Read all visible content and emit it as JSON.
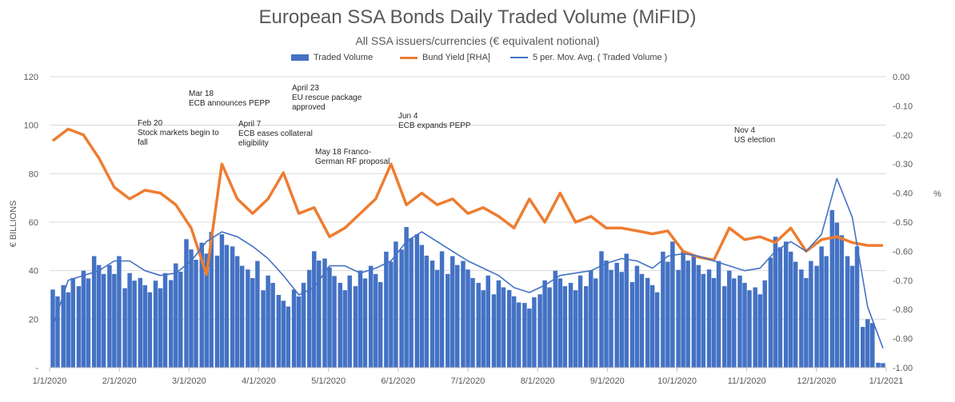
{
  "chart_data": {
    "type": "bar+line",
    "title": "European SSA Bonds Daily Traded Volume (MiFID)",
    "subtitle": "All SSA issuers/currencies (€ equivalent notional)",
    "ylabel": "€ BILLIONS",
    "y2label": "%",
    "ylim": [
      0,
      120
    ],
    "y2lim": [
      -1.0,
      0.0
    ],
    "yticks": [
      "-",
      "20",
      "40",
      "60",
      "80",
      "100",
      "120"
    ],
    "y2ticks": [
      "-1.00",
      "-0.90",
      "-0.80",
      "-0.70",
      "-0.60",
      "-0.50",
      "-0.40",
      "-0.30",
      "-0.20",
      "-0.10",
      "0.00"
    ],
    "xticks": [
      "1/1/2020",
      "2/1/2020",
      "3/1/2020",
      "4/1/2020",
      "5/1/2020",
      "6/1/2020",
      "7/1/2020",
      "8/1/2020",
      "9/1/2020",
      "10/1/2020",
      "11/1/2020",
      "12/1/2020",
      "1/1/2021"
    ],
    "grid": true,
    "legend_position": "top",
    "colors": {
      "volume": "#4472C4",
      "yield": "#ED7D31",
      "mavg": "#4472C4"
    },
    "series": [
      {
        "name": "Traded Volume",
        "type": "bar",
        "axis": "left",
        "weekly_values": [
          35,
          37,
          40,
          46,
          46,
          39,
          37,
          39,
          43,
          53,
          56,
          55,
          50,
          44,
          38,
          30,
          35,
          48,
          45,
          38,
          40,
          42,
          52,
          58,
          55,
          48,
          46,
          44,
          38,
          36,
          32,
          29,
          36,
          40,
          38,
          40,
          48,
          47,
          42,
          37,
          52,
          48,
          46,
          44,
          40,
          38,
          36,
          54,
          52,
          44,
          50,
          65,
          50,
          20,
          2
        ]
      },
      {
        "name": "Bund Yield [RHA]",
        "type": "line",
        "axis": "right",
        "weekly_values": [
          -0.22,
          -0.18,
          -0.2,
          -0.28,
          -0.38,
          -0.42,
          -0.39,
          -0.4,
          -0.44,
          -0.52,
          -0.68,
          -0.3,
          -0.42,
          -0.47,
          -0.42,
          -0.33,
          -0.47,
          -0.45,
          -0.55,
          -0.52,
          -0.47,
          -0.42,
          -0.3,
          -0.44,
          -0.4,
          -0.44,
          -0.42,
          -0.47,
          -0.45,
          -0.48,
          -0.52,
          -0.42,
          -0.5,
          -0.4,
          -0.5,
          -0.48,
          -0.52,
          -0.52,
          -0.53,
          -0.54,
          -0.53,
          -0.6,
          -0.62,
          -0.63,
          -0.52,
          -0.56,
          -0.55,
          -0.57,
          -0.52,
          -0.6,
          -0.56,
          -0.55,
          -0.57,
          -0.58,
          -0.58
        ]
      },
      {
        "name": "5 per. Mov. Avg. ( Traded Volume )",
        "type": "line",
        "axis": "left",
        "weekly_values": [
          17,
          36,
          38,
          40,
          44,
          44,
          40,
          38,
          39,
          44,
          52,
          56,
          54,
          50,
          45,
          38,
          30,
          33,
          42,
          42,
          39,
          41,
          44,
          52,
          56,
          52,
          48,
          44,
          41,
          38,
          33,
          31,
          34,
          38,
          39,
          40,
          43,
          45,
          44,
          41,
          46,
          47,
          46,
          44,
          42,
          40,
          41,
          48,
          52,
          48,
          55,
          78,
          62,
          25,
          8
        ]
      }
    ],
    "annotations": [
      {
        "lines": [
          "Feb 20",
          "Stock markets begin to",
          "fall"
        ]
      },
      {
        "lines": [
          "Mar 18",
          "ECB announces PEPP"
        ]
      },
      {
        "lines": [
          "April 7",
          "ECB eases collateral",
          "eligibility"
        ]
      },
      {
        "lines": [
          "April 23",
          "EU rescue package",
          "approved"
        ]
      },
      {
        "lines": [
          "May 18 Franco-",
          "German RF proposal"
        ]
      },
      {
        "lines": [
          "Jun 4",
          "ECB expands PEPP"
        ]
      },
      {
        "lines": [
          "Nov 4",
          "US election"
        ]
      }
    ]
  }
}
